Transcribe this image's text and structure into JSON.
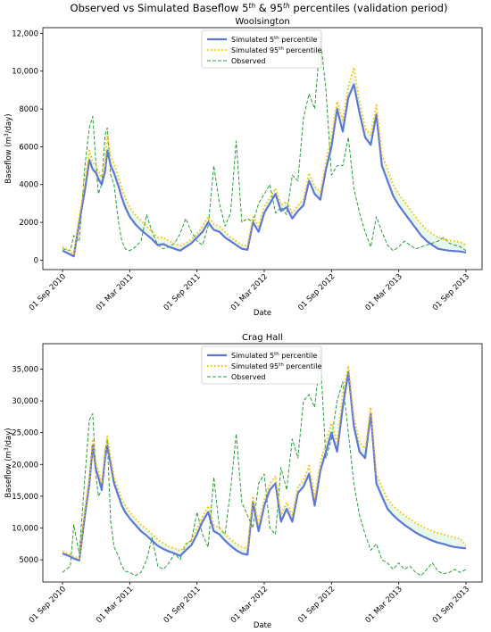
{
  "figure": {
    "title_main": "Observed vs Simulated Baseflow 5",
    "title_sup1": "th",
    "title_mid": " & 95",
    "title_sup2": "th",
    "title_end": " percentiles (validation period)"
  },
  "colors": {
    "sim5": "#5b78d6",
    "sim95": "#ffbf00",
    "observed": "#2a9d3a",
    "band": "#d8f5e0"
  },
  "chart_data": [
    {
      "type": "line",
      "title": "Woolsington",
      "xlabel": "Date",
      "ylabel_pre": "Baseflow (m",
      "ylabel_sup": "3",
      "ylabel_post": "/day)",
      "xticks": [
        "01 Sep 2010",
        "01 Mar 2011",
        "01 Sep 2011",
        "01 Mar 2012",
        "01 Sep 2012",
        "01 Mar 2013",
        "01 Sep 2013"
      ],
      "yticks": [
        "0",
        "2000",
        "4000",
        "6000",
        "8000",
        "10,000",
        "12,000"
      ],
      "ylim": [
        -500,
        12300
      ],
      "legend": {
        "position": "upper center",
        "items": [
          {
            "pre": "Simulated 5",
            "sup": "th",
            "post": " percentile"
          },
          {
            "pre": "Simulated 95",
            "sup": "th",
            "post": " percentile"
          },
          {
            "pre": "Observed",
            "sup": "",
            "post": ""
          }
        ]
      },
      "x_months": [
        0,
        0.7,
        1,
        1.5,
        2,
        2.4,
        2.7,
        3,
        3.2,
        3.5,
        3.8,
        4,
        4.3,
        4.6,
        5,
        5.3,
        5.6,
        6,
        6.5,
        7,
        7.5,
        8,
        8.5,
        9,
        9.5,
        10,
        10.5,
        11,
        11.5,
        12,
        12.5,
        13,
        13.5,
        14,
        14.5,
        15,
        15.5,
        16,
        16.5,
        17,
        17.5,
        18,
        18.5,
        19,
        19.5,
        20,
        20.5,
        21,
        21.5,
        22,
        22.5,
        23,
        23.5,
        24,
        24.5,
        25,
        25.5,
        26,
        26.5,
        27,
        27.5,
        28,
        28.5,
        29,
        29.5,
        30,
        30.5,
        31,
        31.5,
        32,
        32.5,
        33,
        33.5,
        34,
        34.5,
        35,
        35.5,
        36
      ],
      "series": [
        {
          "name": "Simulated 5th percentile",
          "values": [
            500,
            300,
            200,
            2000,
            3700,
            5300,
            4800,
            4600,
            4300,
            4000,
            4700,
            5800,
            5000,
            4600,
            3900,
            3300,
            2800,
            2300,
            1900,
            1600,
            1350,
            1100,
            800,
            850,
            700,
            600,
            500,
            700,
            900,
            1200,
            1500,
            2000,
            1600,
            1500,
            1200,
            1000,
            800,
            600,
            550,
            2000,
            1500,
            2500,
            3000,
            3500,
            2600,
            2800,
            2200,
            2600,
            2900,
            4200,
            3500,
            3200,
            4800,
            6000,
            8000,
            6800,
            8600,
            9300,
            7800,
            6500,
            6100,
            7700,
            5000,
            4200,
            3400,
            2900,
            2500,
            2100,
            1700,
            1300,
            1000,
            800,
            600,
            550,
            500,
            480,
            460,
            400
          ]
        },
        {
          "name": "Simulated 95th percentile",
          "values": [
            700,
            500,
            300,
            2300,
            4200,
            5800,
            5200,
            5000,
            4700,
            4400,
            5100,
            6600,
            5500,
            5100,
            4400,
            3800,
            3300,
            2800,
            2400,
            2100,
            1800,
            1500,
            1200,
            1200,
            1000,
            900,
            750,
            900,
            1100,
            1400,
            1800,
            2300,
            1900,
            1800,
            1500,
            1200,
            1000,
            800,
            750,
            2300,
            1800,
            2800,
            3300,
            3800,
            2900,
            3100,
            2500,
            2900,
            3200,
            4600,
            3900,
            3600,
            5200,
            6500,
            8400,
            7400,
            9200,
            10200,
            8400,
            7000,
            6600,
            8200,
            5600,
            4800,
            4000,
            3500,
            3100,
            2700,
            2300,
            1900,
            1600,
            1400,
            1200,
            1100,
            1050,
            1000,
            950,
            800
          ]
        },
        {
          "name": "Observed",
          "values": [
            600,
            500,
            1300,
            1000,
            5000,
            7000,
            7600,
            5000,
            3500,
            4000,
            6600,
            7000,
            4500,
            4000,
            2000,
            1000,
            600,
            500,
            700,
            1000,
            2400,
            1500,
            800,
            600,
            700,
            900,
            1400,
            2200,
            1500,
            1000,
            800,
            1800,
            5000,
            3000,
            1800,
            2500,
            6300,
            2000,
            2200,
            2000,
            3000,
            3500,
            4000,
            2500,
            2800,
            2400,
            4500,
            4200,
            7500,
            8800,
            8000,
            11800,
            9000,
            4500,
            5000,
            5000,
            6500,
            3800,
            2500,
            1500,
            700,
            2300,
            1500,
            800,
            500,
            700,
            1000,
            800,
            600,
            700,
            800,
            900,
            1000,
            1200,
            900,
            800,
            700,
            500
          ]
        }
      ]
    },
    {
      "type": "line",
      "title": "Crag Hall",
      "xlabel": "Date",
      "ylabel_pre": "Baseflow (m",
      "ylabel_sup": "3",
      "ylabel_post": "/day)",
      "xticks": [
        "01 Sep 2010",
        "01 Mar 2011",
        "01 Sep 2011",
        "01 Mar 2012",
        "01 Sep 2012",
        "01 Mar 2013",
        "01 Sep 2013"
      ],
      "yticks": [
        "5000",
        "10,000",
        "15,000",
        "20,000",
        "25,000",
        "30,000",
        "35,000"
      ],
      "ylim": [
        1500,
        39000
      ],
      "legend": {
        "position": "upper center",
        "items": [
          {
            "pre": "Simulated 5",
            "sup": "th",
            "post": " percentile"
          },
          {
            "pre": "Simulated 95",
            "sup": "th",
            "post": " percentile"
          },
          {
            "pre": "Observed",
            "sup": "",
            "post": ""
          }
        ]
      },
      "x_months": [
        0,
        0.7,
        1,
        1.5,
        2,
        2.4,
        2.7,
        3,
        3.2,
        3.5,
        3.8,
        4,
        4.3,
        4.6,
        5,
        5.3,
        5.6,
        6,
        6.5,
        7,
        7.5,
        8,
        8.5,
        9,
        9.5,
        10,
        10.5,
        11,
        11.5,
        12,
        12.5,
        13,
        13.5,
        14,
        14.5,
        15,
        15.5,
        16,
        16.5,
        17,
        17.5,
        18,
        18.5,
        19,
        19.5,
        20,
        20.5,
        21,
        21.5,
        22,
        22.5,
        23,
        23.5,
        24,
        24.5,
        25,
        25.5,
        26,
        26.5,
        27,
        27.5,
        28,
        28.5,
        29,
        29.5,
        30,
        30.5,
        31,
        31.5,
        32,
        32.5,
        33,
        33.5,
        34,
        34.5,
        35,
        35.5,
        36
      ],
      "series": [
        {
          "name": "Simulated 5th percentile",
          "values": [
            6000,
            5500,
            5200,
            4900,
            12000,
            17000,
            23000,
            19000,
            18000,
            16000,
            21000,
            23000,
            20000,
            17000,
            15000,
            13500,
            12500,
            11500,
            10500,
            9500,
            8800,
            8000,
            7200,
            6700,
            6300,
            6000,
            5600,
            6500,
            7300,
            9000,
            11000,
            12500,
            9500,
            9000,
            8000,
            7200,
            6500,
            6000,
            5800,
            14000,
            9500,
            13500,
            16000,
            17000,
            11000,
            13000,
            11000,
            15500,
            16500,
            18500,
            13500,
            19000,
            22000,
            25000,
            22000,
            29000,
            34500,
            26000,
            22000,
            21000,
            28000,
            17000,
            15000,
            13000,
            12000,
            11200,
            10500,
            9900,
            9300,
            8800,
            8400,
            8000,
            7700,
            7500,
            7200,
            7000,
            6900,
            6800
          ]
        },
        {
          "name": "Simulated 95th percentile",
          "values": [
            6300,
            5800,
            5500,
            5200,
            13000,
            18000,
            24000,
            20000,
            19000,
            17000,
            22000,
            24500,
            21000,
            18000,
            16000,
            14500,
            13500,
            12500,
            11500,
            10500,
            9800,
            9000,
            8200,
            7600,
            7100,
            6800,
            6400,
            7300,
            8100,
            9800,
            11800,
            13500,
            10500,
            10000,
            9000,
            8200,
            7500,
            7000,
            6800,
            15000,
            10500,
            14500,
            17000,
            18200,
            12000,
            14000,
            12000,
            16500,
            17500,
            19800,
            14800,
            20300,
            23500,
            26500,
            23500,
            31000,
            35500,
            27500,
            23500,
            22500,
            29000,
            18500,
            16500,
            14500,
            13500,
            12700,
            12000,
            11400,
            10800,
            10300,
            9900,
            9500,
            9200,
            9000,
            8700,
            8500,
            8300,
            7200
          ]
        },
        {
          "name": "Observed",
          "values": [
            3000,
            4000,
            10500,
            6000,
            18000,
            27000,
            28000,
            18000,
            15000,
            16000,
            22000,
            24000,
            11000,
            7000,
            5500,
            4000,
            3200,
            3000,
            2500,
            3000,
            5000,
            8500,
            4000,
            3500,
            4500,
            6000,
            5000,
            7500,
            8000,
            12500,
            9000,
            7000,
            18000,
            10000,
            9000,
            16000,
            24800,
            14000,
            12000,
            10000,
            17000,
            18500,
            10000,
            9000,
            19500,
            16000,
            24000,
            21000,
            30000,
            31000,
            29000,
            37000,
            21000,
            24000,
            30000,
            33000,
            25000,
            17000,
            12000,
            9000,
            6500,
            7500,
            5000,
            4500,
            3500,
            4500,
            3500,
            4000,
            3000,
            2500,
            3500,
            4500,
            3200,
            2800,
            3000,
            3500,
            3000,
            3500
          ]
        }
      ]
    }
  ]
}
